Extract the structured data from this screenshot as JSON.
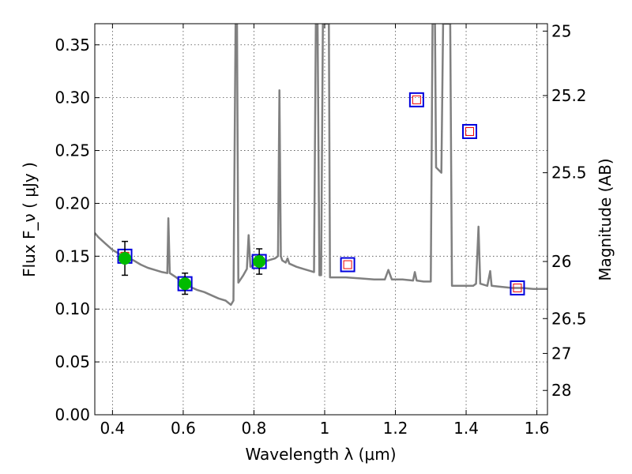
{
  "chart_data": {
    "type": "scatter",
    "title": "",
    "xlabel": "Wavelength  λ (μm)",
    "ylabel": "Flux  F_ν  ( μJy )",
    "ylabel_right": "Magnitude (AB)",
    "xlim": [
      0.35,
      1.63
    ],
    "ylim": [
      0.0,
      0.37
    ],
    "grid": true,
    "x_ticks": [
      0.4,
      0.6,
      0.8,
      1.0,
      1.2,
      1.4,
      1.6
    ],
    "x_tick_labels": [
      "0.4",
      "0.6",
      "0.8",
      "1",
      "1.2",
      "1.4",
      "1.6"
    ],
    "y_ticks": [
      0.0,
      0.05,
      0.1,
      0.15,
      0.2,
      0.25,
      0.3,
      0.35
    ],
    "y_tick_labels": [
      "0.00",
      "0.05",
      "0.10",
      "0.15",
      "0.20",
      "0.25",
      "0.30",
      "0.35"
    ],
    "right_ticks": [
      {
        "label": "25",
        "flux": 0.363
      },
      {
        "label": "25.2",
        "flux": 0.302
      },
      {
        "label": "25.5",
        "flux": 0.229
      },
      {
        "label": "26",
        "flux": 0.145
      },
      {
        "label": "26.5",
        "flux": 0.091
      },
      {
        "label": "27",
        "flux": 0.058
      },
      {
        "label": "28",
        "flux": 0.023
      }
    ],
    "colors": {
      "spectrum": "#808080",
      "observed": "#00bb00",
      "model_box": "#0000dd",
      "model_inner": "#ee0000",
      "errorbar": "#000000"
    },
    "series": [
      {
        "type": "line",
        "points": [
          [
            0.35,
            0.172
          ],
          [
            0.36,
            0.168
          ],
          [
            0.37,
            0.165
          ],
          [
            0.38,
            0.162
          ],
          [
            0.4,
            0.156
          ],
          [
            0.42,
            0.152
          ],
          [
            0.44,
            0.149
          ],
          [
            0.46,
            0.146
          ],
          [
            0.48,
            0.142
          ],
          [
            0.5,
            0.139
          ],
          [
            0.52,
            0.137
          ],
          [
            0.54,
            0.135
          ],
          [
            0.555,
            0.134
          ],
          [
            0.558,
            0.186
          ],
          [
            0.562,
            0.134
          ],
          [
            0.58,
            0.13
          ],
          [
            0.6,
            0.125
          ],
          [
            0.62,
            0.121
          ],
          [
            0.64,
            0.118
          ],
          [
            0.66,
            0.116
          ],
          [
            0.68,
            0.113
          ],
          [
            0.7,
            0.11
          ],
          [
            0.72,
            0.108
          ],
          [
            0.735,
            0.104
          ],
          [
            0.742,
            0.108
          ],
          [
            0.748,
            0.37
          ],
          [
            0.752,
            0.37
          ],
          [
            0.756,
            0.125
          ],
          [
            0.77,
            0.132
          ],
          [
            0.78,
            0.138
          ],
          [
            0.785,
            0.17
          ],
          [
            0.79,
            0.14
          ],
          [
            0.8,
            0.142
          ],
          [
            0.82,
            0.144
          ],
          [
            0.84,
            0.146
          ],
          [
            0.86,
            0.148
          ],
          [
            0.868,
            0.15
          ],
          [
            0.872,
            0.307
          ],
          [
            0.876,
            0.15
          ],
          [
            0.88,
            0.146
          ],
          [
            0.89,
            0.144
          ],
          [
            0.895,
            0.148
          ],
          [
            0.9,
            0.143
          ],
          [
            0.92,
            0.14
          ],
          [
            0.94,
            0.138
          ],
          [
            0.96,
            0.136
          ],
          [
            0.97,
            0.135
          ],
          [
            0.975,
            0.37
          ],
          [
            0.98,
            0.37
          ],
          [
            0.985,
            0.132
          ],
          [
            0.99,
            0.132
          ],
          [
            0.995,
            0.37
          ],
          [
            1.012,
            0.37
          ],
          [
            1.015,
            0.13
          ],
          [
            1.03,
            0.13
          ],
          [
            1.06,
            0.13
          ],
          [
            1.1,
            0.129
          ],
          [
            1.14,
            0.128
          ],
          [
            1.17,
            0.128
          ],
          [
            1.18,
            0.137
          ],
          [
            1.19,
            0.128
          ],
          [
            1.22,
            0.128
          ],
          [
            1.25,
            0.127
          ],
          [
            1.255,
            0.135
          ],
          [
            1.26,
            0.127
          ],
          [
            1.28,
            0.126
          ],
          [
            1.3,
            0.126
          ],
          [
            1.305,
            0.37
          ],
          [
            1.312,
            0.37
          ],
          [
            1.315,
            0.234
          ],
          [
            1.33,
            0.229
          ],
          [
            1.335,
            0.37
          ],
          [
            1.355,
            0.37
          ],
          [
            1.36,
            0.122
          ],
          [
            1.4,
            0.122
          ],
          [
            1.42,
            0.122
          ],
          [
            1.428,
            0.124
          ],
          [
            1.435,
            0.178
          ],
          [
            1.44,
            0.124
          ],
          [
            1.46,
            0.122
          ],
          [
            1.468,
            0.136
          ],
          [
            1.472,
            0.122
          ],
          [
            1.5,
            0.121
          ],
          [
            1.53,
            0.12
          ],
          [
            1.56,
            0.12
          ],
          [
            1.59,
            0.119
          ],
          [
            1.63,
            0.119
          ]
        ]
      },
      {
        "type": "scatter",
        "points": [
          {
            "x": 0.435,
            "y": 0.148,
            "err": 0.016
          },
          {
            "x": 0.605,
            "y": 0.124,
            "err": 0.01
          },
          {
            "x": 0.815,
            "y": 0.145,
            "err": 0.012
          }
        ]
      },
      {
        "type": "scatter",
        "points": [
          {
            "x": 0.435,
            "y": 0.15
          },
          {
            "x": 0.605,
            "y": 0.124
          },
          {
            "x": 0.815,
            "y": 0.145
          },
          {
            "x": 1.065,
            "y": 0.142
          },
          {
            "x": 1.26,
            "y": 0.298
          },
          {
            "x": 1.41,
            "y": 0.268
          },
          {
            "x": 1.545,
            "y": 0.12
          }
        ]
      }
    ]
  }
}
